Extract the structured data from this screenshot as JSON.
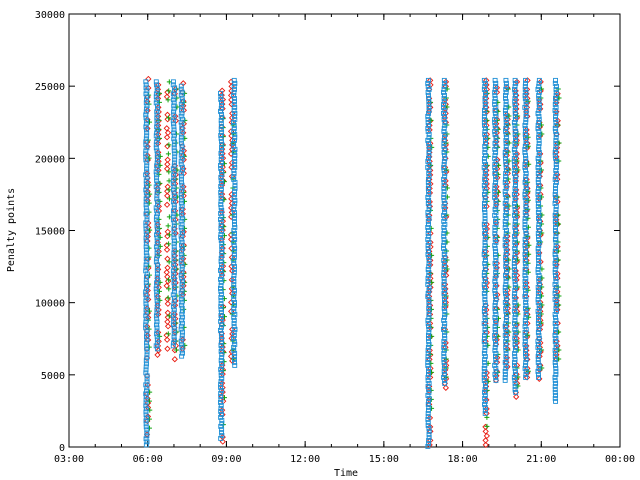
{
  "chart_data": {
    "type": "scatter",
    "xlabel": "Time",
    "ylabel": "Penalty points",
    "x_ticks": [
      "03:00",
      "06:00",
      "09:00",
      "12:00",
      "15:00",
      "18:00",
      "21:00",
      "00:00"
    ],
    "y_ticks": [
      "0",
      "5000",
      "10000",
      "15000",
      "20000",
      "25000",
      "30000"
    ],
    "xlim_hours": [
      3,
      24
    ],
    "ylim": [
      0,
      30000
    ],
    "grid": false,
    "legend": "none",
    "colors": {
      "red": "#e8190e",
      "green": "#12a30e",
      "blue": "#1e8fd6"
    },
    "marker_styles": {
      "red": "diamond",
      "green": "plus",
      "blue": "square"
    },
    "series": [
      {
        "marker": "red",
        "columns": [
          {
            "x_hour": 6.0,
            "y_min": 0,
            "y_max": 25500
          },
          {
            "x_hour": 6.4,
            "y_min": 6200,
            "y_max": 25400
          },
          {
            "x_hour": 6.75,
            "y_min": 6500,
            "y_max": 25200
          },
          {
            "x_hour": 7.05,
            "y_min": 5800,
            "y_max": 25100
          },
          {
            "x_hour": 7.35,
            "y_min": 6000,
            "y_max": 25200
          },
          {
            "x_hour": 8.85,
            "y_min": 200,
            "y_max": 25000
          },
          {
            "x_hour": 9.2,
            "y_min": 5500,
            "y_max": 25300
          },
          {
            "x_hour": 16.75,
            "y_min": 0,
            "y_max": 25400
          },
          {
            "x_hour": 17.35,
            "y_min": 3900,
            "y_max": 25300
          },
          {
            "x_hour": 18.9,
            "y_min": 0,
            "y_max": 25400
          },
          {
            "x_hour": 19.3,
            "y_min": 4500,
            "y_max": 25200
          },
          {
            "x_hour": 19.7,
            "y_min": 4500,
            "y_max": 25200
          },
          {
            "x_hour": 20.05,
            "y_min": 3200,
            "y_max": 25300
          },
          {
            "x_hour": 20.45,
            "y_min": 4500,
            "y_max": 25400
          },
          {
            "x_hour": 20.95,
            "y_min": 4500,
            "y_max": 25300
          },
          {
            "x_hour": 21.6,
            "y_min": 5800,
            "y_max": 25100
          }
        ]
      },
      {
        "marker": "green",
        "columns": [
          {
            "x_hour": 6.05,
            "y_min": 800,
            "y_max": 25000
          },
          {
            "x_hour": 6.45,
            "y_min": 7000,
            "y_max": 24500
          },
          {
            "x_hour": 6.8,
            "y_min": 7500,
            "y_max": 25300
          },
          {
            "x_hour": 7.1,
            "y_min": 6500,
            "y_max": 24800
          },
          {
            "x_hour": 7.4,
            "y_min": 7000,
            "y_max": 24500
          },
          {
            "x_hour": 8.9,
            "y_min": 1500,
            "y_max": 24000
          },
          {
            "x_hour": 9.25,
            "y_min": 6000,
            "y_max": 24800
          },
          {
            "x_hour": 16.8,
            "y_min": 1000,
            "y_max": 24500
          },
          {
            "x_hour": 17.4,
            "y_min": 4500,
            "y_max": 24800
          },
          {
            "x_hour": 18.95,
            "y_min": 1000,
            "y_max": 24500
          },
          {
            "x_hour": 19.35,
            "y_min": 5000,
            "y_max": 24500
          },
          {
            "x_hour": 19.75,
            "y_min": 5000,
            "y_max": 24800
          },
          {
            "x_hour": 20.1,
            "y_min": 4000,
            "y_max": 24800
          },
          {
            "x_hour": 20.5,
            "y_min": 5000,
            "y_max": 25200
          },
          {
            "x_hour": 21.0,
            "y_min": 5000,
            "y_max": 24800
          },
          {
            "x_hour": 21.65,
            "y_min": 6000,
            "y_max": 24800
          }
        ]
      },
      {
        "marker": "blue",
        "columns": [
          {
            "x_hour": 5.95,
            "y_min": 0,
            "y_max": 25300
          },
          {
            "x_hour": 6.35,
            "y_min": 6800,
            "y_max": 25300
          },
          {
            "x_hour": 7.0,
            "y_min": 7000,
            "y_max": 25300
          },
          {
            "x_hour": 7.3,
            "y_min": 6200,
            "y_max": 25000
          },
          {
            "x_hour": 8.8,
            "y_min": 400,
            "y_max": 24500
          },
          {
            "x_hour": 9.3,
            "y_min": 5600,
            "y_max": 25400
          },
          {
            "x_hour": 16.7,
            "y_min": 0,
            "y_max": 25400
          },
          {
            "x_hour": 17.3,
            "y_min": 4400,
            "y_max": 25400
          },
          {
            "x_hour": 18.85,
            "y_min": 2200,
            "y_max": 25400
          },
          {
            "x_hour": 19.25,
            "y_min": 4600,
            "y_max": 25400
          },
          {
            "x_hour": 19.65,
            "y_min": 4600,
            "y_max": 25400
          },
          {
            "x_hour": 20.0,
            "y_min": 3600,
            "y_max": 25400
          },
          {
            "x_hour": 20.4,
            "y_min": 4800,
            "y_max": 25400
          },
          {
            "x_hour": 20.9,
            "y_min": 4800,
            "y_max": 25400
          },
          {
            "x_hour": 21.55,
            "y_min": 3000,
            "y_max": 25400
          }
        ]
      }
    ]
  }
}
